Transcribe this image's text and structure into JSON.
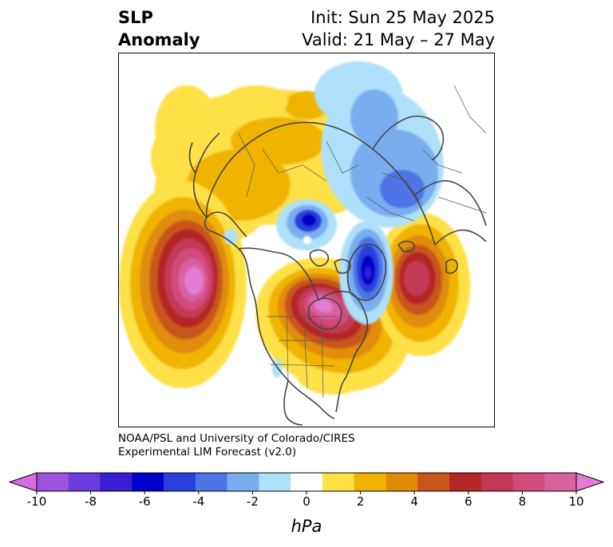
{
  "header": {
    "title_line1": "SLP",
    "title_line2": "Anomaly",
    "init": "Init: Sun 25 May 2025",
    "valid": "Valid: 21 May – 27 May"
  },
  "credit": {
    "line1": "NOAA/PSL and University of Colorado/CIRES",
    "line2": "Experimental LIM Forecast (v2.0)"
  },
  "colorbar": {
    "unit": "hPa",
    "ticks": [
      "-10",
      "-8",
      "-6",
      "-4",
      "-2",
      "0",
      "2",
      "4",
      "6",
      "8",
      "10"
    ],
    "colors": [
      "#d96ce3",
      "#9d52de",
      "#6b3bdb",
      "#3a1ed1",
      "#0000cc",
      "#2a40db",
      "#4d75e6",
      "#78aef0",
      "#aee0fa",
      "#ffffff",
      "#ffe046",
      "#f0b400",
      "#e08c0a",
      "#c8561a",
      "#b42828",
      "#c23a55",
      "#d24a7c",
      "#d9619e",
      "#e57cd4"
    ]
  }
}
